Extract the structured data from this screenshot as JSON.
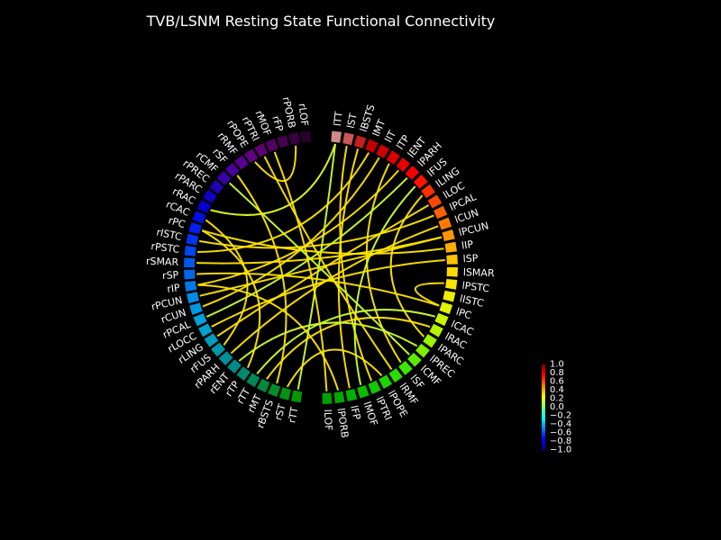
{
  "chart_data": {
    "type": "connectivity_circle",
    "title": "TVB/LSNM Resting State Functional Connectivity",
    "colormap": "jet",
    "vmin": -1.0,
    "vmax": 1.0,
    "nodes": [
      {
        "label": "lTT",
        "color": "#d08a8a"
      },
      {
        "label": "lST",
        "color": "#cc5555"
      },
      {
        "label": "lBSTS",
        "color": "#c42020"
      },
      {
        "label": "lMT",
        "color": "#c40000"
      },
      {
        "label": "lIT",
        "color": "#d00000"
      },
      {
        "label": "lTP",
        "color": "#dc0000"
      },
      {
        "label": "lENT",
        "color": "#e80000"
      },
      {
        "label": "lPARH",
        "color": "#f20000"
      },
      {
        "label": "lFUS",
        "color": "#ff1400"
      },
      {
        "label": "lLING",
        "color": "#ff2e00"
      },
      {
        "label": "lLOC",
        "color": "#ff4800"
      },
      {
        "label": "lPCAL",
        "color": "#ff6200"
      },
      {
        "label": "lCUN",
        "color": "#ff7c00"
      },
      {
        "label": "lPCUN",
        "color": "#ff9600"
      },
      {
        "label": "lIP",
        "color": "#ffae00"
      },
      {
        "label": "lSP",
        "color": "#ffc400"
      },
      {
        "label": "lSMAR",
        "color": "#ffd800"
      },
      {
        "label": "lPSTC",
        "color": "#f8e400"
      },
      {
        "label": "lISTC",
        "color": "#eeee00"
      },
      {
        "label": "lPC",
        "color": "#e2f400"
      },
      {
        "label": "lCAC",
        "color": "#ccf400"
      },
      {
        "label": "lRAC",
        "color": "#b4f400"
      },
      {
        "label": "lPARC",
        "color": "#9cf400"
      },
      {
        "label": "lPREC",
        "color": "#7cf000"
      },
      {
        "label": "lCMF",
        "color": "#5aec00"
      },
      {
        "label": "lSF",
        "color": "#3ce800"
      },
      {
        "label": "lRMF",
        "color": "#28e000"
      },
      {
        "label": "lPOPE",
        "color": "#1cd400"
      },
      {
        "label": "lPTRI",
        "color": "#12c800"
      },
      {
        "label": "lMOF",
        "color": "#0abc00"
      },
      {
        "label": "lFP",
        "color": "#04b000"
      },
      {
        "label": "lPORB",
        "color": "#00a800"
      },
      {
        "label": "lLOF",
        "color": "#00a000"
      },
      {
        "label": "rTT",
        "color": "#009a00"
      },
      {
        "label": "rST",
        "color": "#009410"
      },
      {
        "label": "rBSTS",
        "color": "#008e28"
      },
      {
        "label": "rMT",
        "color": "#008a40"
      },
      {
        "label": "rTT",
        "color": "#008858"
      },
      {
        "label": "rTP",
        "color": "#008a70"
      },
      {
        "label": "rENT",
        "color": "#008c86"
      },
      {
        "label": "rPARH",
        "color": "#00909a"
      },
      {
        "label": "rFUS",
        "color": "#0096aa"
      },
      {
        "label": "rLING",
        "color": "#009cbc"
      },
      {
        "label": "rLOCC",
        "color": "#00a2cc"
      },
      {
        "label": "rPCAL",
        "color": "#00a0d8"
      },
      {
        "label": "rCUN",
        "color": "#0096e0"
      },
      {
        "label": "rPCUN",
        "color": "#008ae6"
      },
      {
        "label": "rIP",
        "color": "#007ae8"
      },
      {
        "label": "rSP",
        "color": "#0068ea"
      },
      {
        "label": "rSMAR",
        "color": "#0058ec"
      },
      {
        "label": "rPSTC",
        "color": "#0046ee"
      },
      {
        "label": "rISTC",
        "color": "#0032f0"
      },
      {
        "label": "rPC",
        "color": "#0020f0"
      },
      {
        "label": "rCAC",
        "color": "#0010e4"
      },
      {
        "label": "rRAC",
        "color": "#0400d4"
      },
      {
        "label": "rPARC",
        "color": "#1000c4"
      },
      {
        "label": "rPREC",
        "color": "#2400b4"
      },
      {
        "label": "rCMF",
        "color": "#3800a8"
      },
      {
        "label": "rSF",
        "color": "#4a009c"
      },
      {
        "label": "rRMF",
        "color": "#5a0090"
      },
      {
        "label": "rPOPE",
        "color": "#640084"
      },
      {
        "label": "rPTRI",
        "color": "#600074"
      },
      {
        "label": "rMOF",
        "color": "#540064"
      },
      {
        "label": "rFP",
        "color": "#480052"
      },
      {
        "label": "rPORB",
        "color": "#3a0042"
      },
      {
        "label": "rLOF",
        "color": "#2a0030"
      }
    ],
    "connections": [
      {
        "source": 0,
        "target": 54,
        "value": 0.2
      },
      {
        "source": 0,
        "target": 33,
        "value": 0.15
      },
      {
        "source": 1,
        "target": 28,
        "value": 0.3
      },
      {
        "source": 2,
        "target": 30,
        "value": 0.3
      },
      {
        "source": 3,
        "target": 50,
        "value": 0.3
      },
      {
        "source": 4,
        "target": 45,
        "value": 0.3
      },
      {
        "source": 5,
        "target": 25,
        "value": 0.3
      },
      {
        "source": 6,
        "target": 47,
        "value": 0.3
      },
      {
        "source": 7,
        "target": 44,
        "value": 0.15
      },
      {
        "source": 8,
        "target": 29,
        "value": 0.15
      },
      {
        "source": 9,
        "target": 22,
        "value": 0.3
      },
      {
        "source": 10,
        "target": 42,
        "value": 0.3
      },
      {
        "source": 11,
        "target": 51,
        "value": 0.3
      },
      {
        "source": 12,
        "target": 40,
        "value": 0.3
      },
      {
        "source": 13,
        "target": 49,
        "value": 0.3
      },
      {
        "source": 13,
        "target": 46,
        "value": 0.3
      },
      {
        "source": 14,
        "target": 52,
        "value": 0.3
      },
      {
        "source": 15,
        "target": 43,
        "value": 0.3
      },
      {
        "source": 17,
        "target": 19,
        "value": 0.3
      },
      {
        "source": 19,
        "target": 48,
        "value": 0.3
      },
      {
        "source": 20,
        "target": 37,
        "value": 0.15
      },
      {
        "source": 21,
        "target": 36,
        "value": 0.3
      },
      {
        "source": 23,
        "target": 39,
        "value": 0.15
      },
      {
        "source": 24,
        "target": 57,
        "value": 0.15
      },
      {
        "source": 26,
        "target": 61,
        "value": 0.3
      },
      {
        "source": 27,
        "target": 34,
        "value": 0.3
      },
      {
        "source": 31,
        "target": 47,
        "value": 0.3
      },
      {
        "source": 32,
        "target": 62,
        "value": 0.3
      },
      {
        "source": 35,
        "target": 58,
        "value": 0.3
      },
      {
        "source": 38,
        "target": 52,
        "value": 0.3
      },
      {
        "source": 41,
        "target": 53,
        "value": 0.3
      },
      {
        "source": 60,
        "target": 64,
        "value": 0.3
      }
    ],
    "colorbar": {
      "ticks": [
        "1.0",
        "0.8",
        "0.6",
        "0.4",
        "0.2",
        "0.0",
        "−0.2",
        "−0.4",
        "−0.6",
        "−0.8",
        "−1.0"
      ]
    }
  }
}
